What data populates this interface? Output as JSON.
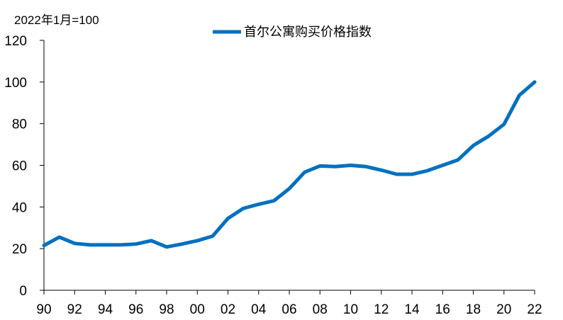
{
  "chart_data": {
    "type": "line",
    "title": "",
    "unit_label": "2022年1月=100",
    "xlabel": "",
    "ylabel": "",
    "ylim": [
      0,
      120
    ],
    "yticks": [
      0,
      20,
      40,
      60,
      80,
      100,
      120
    ],
    "xlim": [
      1990,
      2022
    ],
    "xtick_values": [
      1990,
      1992,
      1994,
      1996,
      1998,
      2000,
      2002,
      2004,
      2006,
      2008,
      2010,
      2012,
      2014,
      2016,
      2018,
      2020,
      2022
    ],
    "xtick_labels": [
      "90",
      "92",
      "94",
      "96",
      "98",
      "00",
      "02",
      "04",
      "06",
      "08",
      "10",
      "12",
      "14",
      "16",
      "18",
      "20",
      "22"
    ],
    "grid": false,
    "legend_position": "top-center",
    "series": [
      {
        "name": "首尔公寓购买价格指数",
        "color": "#0070C0",
        "x": [
          1990,
          1991,
          1992,
          1993,
          1994,
          1995,
          1996,
          1997,
          1998,
          1999,
          2000,
          2001,
          2002,
          2003,
          2004,
          2005,
          2006,
          2007,
          2008,
          2009,
          2010,
          2011,
          2012,
          2013,
          2014,
          2015,
          2016,
          2017,
          2018,
          2019,
          2020,
          2021,
          2022
        ],
        "values": [
          21.5,
          25.5,
          22.5,
          21.8,
          21.8,
          21.8,
          22.2,
          23.8,
          20.8,
          22.2,
          23.8,
          26.0,
          34.5,
          39.3,
          41.3,
          43.0,
          48.8,
          56.7,
          59.7,
          59.4,
          60.0,
          59.4,
          57.7,
          55.7,
          55.7,
          57.4,
          60.0,
          62.6,
          69.5,
          74.0,
          79.7,
          93.6,
          100.0
        ]
      }
    ]
  }
}
